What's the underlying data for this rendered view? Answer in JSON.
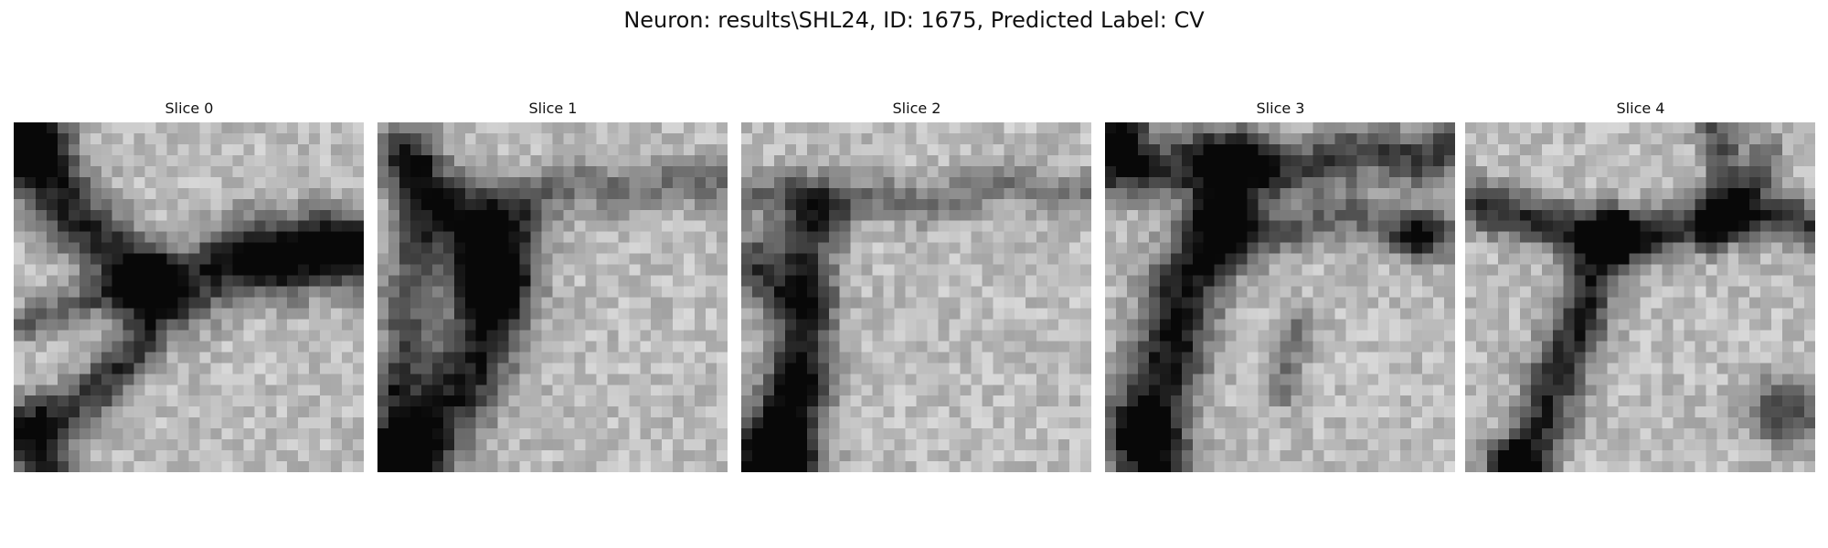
{
  "title": "Neuron: results\\SHL24, ID: 1675, Predicted Label: CV",
  "grid_size": 32,
  "slices": [
    {
      "label": "Slice 0",
      "colormap": "gray",
      "dark_strokes": [
        {
          "pts": [
            [
              0,
              2
            ],
            [
              3,
              5
            ],
            [
              5,
              8
            ],
            [
              8,
              11
            ],
            [
              10,
              13
            ],
            [
              12,
              14
            ],
            [
              15,
              15
            ],
            [
              18,
              13
            ],
            [
              21,
              12
            ],
            [
              24,
              12
            ],
            [
              27,
              11
            ],
            [
              31,
              11
            ]
          ],
          "w": 2.2,
          "s": 0.6
        },
        {
          "pts": [
            [
              12,
              14
            ],
            [
              12,
              17
            ],
            [
              11,
              20
            ],
            [
              9,
              22
            ],
            [
              7,
              24
            ],
            [
              4,
              26
            ],
            [
              0,
              27
            ]
          ],
          "w": 1.6,
          "s": 0.55
        },
        {
          "pts": [
            [
              0,
              18
            ],
            [
              3,
              17
            ],
            [
              6,
              16
            ],
            [
              9,
              15
            ],
            [
              12,
              14
            ]
          ],
          "w": 1.2,
          "s": 0.35
        },
        {
          "pts": [
            [
              22,
              11
            ],
            [
              25,
              12
            ],
            [
              28,
              11
            ],
            [
              31,
              12
            ]
          ],
          "w": 2.6,
          "s": 0.3
        }
      ],
      "dark_blobs": [
        {
          "c": [
            1,
            1
          ],
          "r": 2.2,
          "s": 0.85
        },
        {
          "c": [
            2,
            30
          ],
          "r": 2.0,
          "s": 0.7
        },
        {
          "c": [
            12,
            13
          ],
          "r": 1.2,
          "s": 0.35
        }
      ]
    },
    {
      "label": "Slice 1",
      "colormap": "gray",
      "dark_strokes": [
        {
          "pts": [
            [
              11,
              10
            ],
            [
              10,
              13
            ],
            [
              10,
              16
            ],
            [
              9,
              19
            ],
            [
              8,
              22
            ],
            [
              6,
              25
            ],
            [
              4,
              28
            ],
            [
              2,
              31
            ]
          ],
          "w": 2.6,
          "s": 0.65
        },
        {
          "pts": [
            [
              3,
              4
            ],
            [
              3,
              8
            ],
            [
              3,
              12
            ],
            [
              2,
              16
            ],
            [
              2,
              20
            ],
            [
              1,
              24
            ]
          ],
          "w": 1.6,
          "s": 0.45
        },
        {
          "pts": [
            [
              6,
              6
            ],
            [
              10,
              7
            ],
            [
              14,
              6
            ],
            [
              18,
              5
            ],
            [
              22,
              6
            ],
            [
              26,
              5
            ],
            [
              31,
              5
            ]
          ],
          "w": 1.6,
          "s": 0.3
        },
        {
          "pts": [
            [
              6,
              8
            ],
            [
              8,
              11
            ],
            [
              10,
              14
            ]
          ],
          "w": 2.0,
          "s": 0.4
        }
      ],
      "dark_blobs": [
        {
          "c": [
            1,
            30
          ],
          "r": 2.4,
          "s": 0.75
        },
        {
          "c": [
            2,
            2
          ],
          "r": 2.2,
          "s": 0.45
        },
        {
          "c": [
            10,
            14
          ],
          "r": 2.0,
          "s": 0.35
        }
      ]
    },
    {
      "label": "Slice 2",
      "colormap": "gray",
      "dark_strokes": [
        {
          "pts": [
            [
              6,
              8
            ],
            [
              5,
              12
            ],
            [
              5,
              16
            ],
            [
              5,
              20
            ],
            [
              4,
              24
            ],
            [
              3,
              28
            ],
            [
              2,
              31
            ]
          ],
          "w": 2.2,
          "s": 0.55
        },
        {
          "pts": [
            [
              0,
              6
            ],
            [
              4,
              6
            ],
            [
              8,
              7
            ],
            [
              12,
              6
            ],
            [
              16,
              7
            ],
            [
              20,
              6
            ],
            [
              24,
              5
            ],
            [
              28,
              6
            ],
            [
              31,
              6
            ]
          ],
          "w": 1.4,
          "s": 0.28
        },
        {
          "pts": [
            [
              0,
              14
            ],
            [
              3,
              15
            ],
            [
              6,
              16
            ]
          ],
          "w": 1.4,
          "s": 0.25
        }
      ],
      "dark_blobs": [
        {
          "c": [
            3,
            30
          ],
          "r": 2.4,
          "s": 0.85
        },
        {
          "c": [
            5,
            24
          ],
          "r": 1.6,
          "s": 0.4
        },
        {
          "c": [
            0,
            12
          ],
          "r": 1.8,
          "s": 0.35
        }
      ]
    },
    {
      "label": "Slice 3",
      "colormap": "gray",
      "dark_strokes": [
        {
          "pts": [
            [
              11,
              4
            ],
            [
              10,
              8
            ],
            [
              9,
              11
            ],
            [
              7,
              14
            ],
            [
              6,
              18
            ],
            [
              5,
              22
            ],
            [
              4,
              26
            ],
            [
              4,
              31
            ]
          ],
          "w": 2.4,
          "s": 0.7
        },
        {
          "pts": [
            [
              0,
              4
            ],
            [
              4,
              4
            ],
            [
              8,
              3
            ],
            [
              12,
              3
            ],
            [
              16,
              4
            ],
            [
              20,
              3
            ],
            [
              24,
              2
            ],
            [
              28,
              3
            ],
            [
              31,
              2
            ]
          ],
          "w": 1.8,
          "s": 0.5
        },
        {
          "pts": [
            [
              10,
              9
            ],
            [
              14,
              10
            ],
            [
              18,
              9
            ],
            [
              22,
              8
            ],
            [
              26,
              9
            ],
            [
              31,
              10
            ]
          ],
          "w": 1.6,
          "s": 0.35
        },
        {
          "pts": [
            [
              17,
              18
            ],
            [
              16,
              21
            ],
            [
              16,
              24
            ]
          ],
          "w": 1.2,
          "s": 0.3
        }
      ],
      "dark_blobs": [
        {
          "c": [
            1,
            1
          ],
          "r": 2.0,
          "s": 0.7
        },
        {
          "c": [
            28,
            10
          ],
          "r": 1.4,
          "s": 0.45
        },
        {
          "c": [
            2,
            28
          ],
          "r": 1.8,
          "s": 0.55
        }
      ]
    },
    {
      "label": "Slice 4",
      "colormap": "gray",
      "dark_strokes": [
        {
          "pts": [
            [
              0,
              7
            ],
            [
              4,
              8
            ],
            [
              8,
              9
            ],
            [
              11,
              10
            ],
            [
              13,
              10
            ],
            [
              16,
              10
            ],
            [
              19,
              9
            ],
            [
              22,
              9
            ],
            [
              25,
              8
            ],
            [
              28,
              8
            ],
            [
              31,
              9
            ]
          ],
          "w": 1.6,
          "s": 0.55
        },
        {
          "pts": [
            [
              13,
              10
            ],
            [
              11,
              14
            ],
            [
              10,
              18
            ],
            [
              8,
              22
            ],
            [
              7,
              26
            ],
            [
              5,
              30
            ],
            [
              4,
              31
            ]
          ],
          "w": 1.8,
          "s": 0.6
        },
        {
          "pts": [
            [
              22,
              9
            ],
            [
              23,
              5
            ],
            [
              23,
              1
            ],
            [
              22,
              0
            ]
          ],
          "w": 1.2,
          "s": 0.45
        },
        {
          "pts": [
            [
              27,
              2
            ],
            [
              26,
              5
            ],
            [
              24,
              8
            ]
          ],
          "w": 1.2,
          "s": 0.35
        }
      ],
      "dark_blobs": [
        {
          "c": [
            4,
            31
          ],
          "r": 1.4,
          "s": 0.75
        },
        {
          "c": [
            29,
            26
          ],
          "r": 2.2,
          "s": 0.55
        },
        {
          "c": [
            13,
            10
          ],
          "r": 1.4,
          "s": 0.35
        }
      ]
    }
  ]
}
